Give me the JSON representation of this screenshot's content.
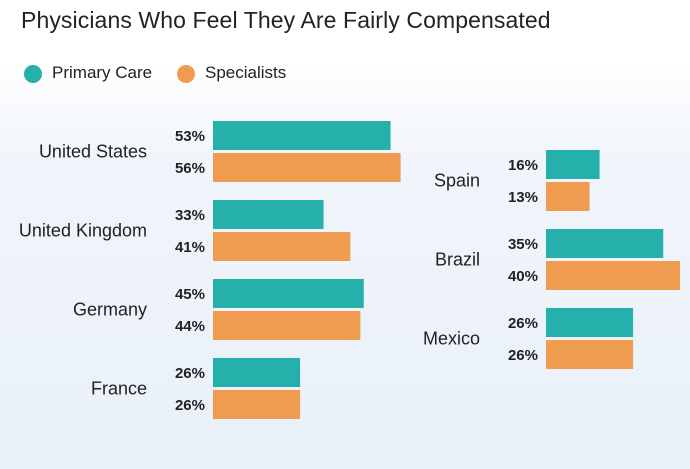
{
  "chart_data": {
    "type": "bar",
    "orientation": "horizontal",
    "title": "Physicians Who Feel They Are Fairly Compensated",
    "value_suffix": "%",
    "series": [
      {
        "name": "Primary Care",
        "color": "#26b0ac"
      },
      {
        "name": "Specialists",
        "color": "#f09c50"
      }
    ],
    "panels": [
      {
        "categories": [
          "United States",
          "United Kingdom",
          "Germany",
          "France"
        ],
        "values": [
          [
            53,
            56
          ],
          [
            33,
            41
          ],
          [
            45,
            44
          ],
          [
            26,
            26
          ]
        ]
      },
      {
        "categories": [
          "Spain",
          "Brazil",
          "Mexico"
        ],
        "values": [
          [
            16,
            13
          ],
          [
            35,
            40
          ],
          [
            26,
            26
          ]
        ]
      }
    ]
  }
}
